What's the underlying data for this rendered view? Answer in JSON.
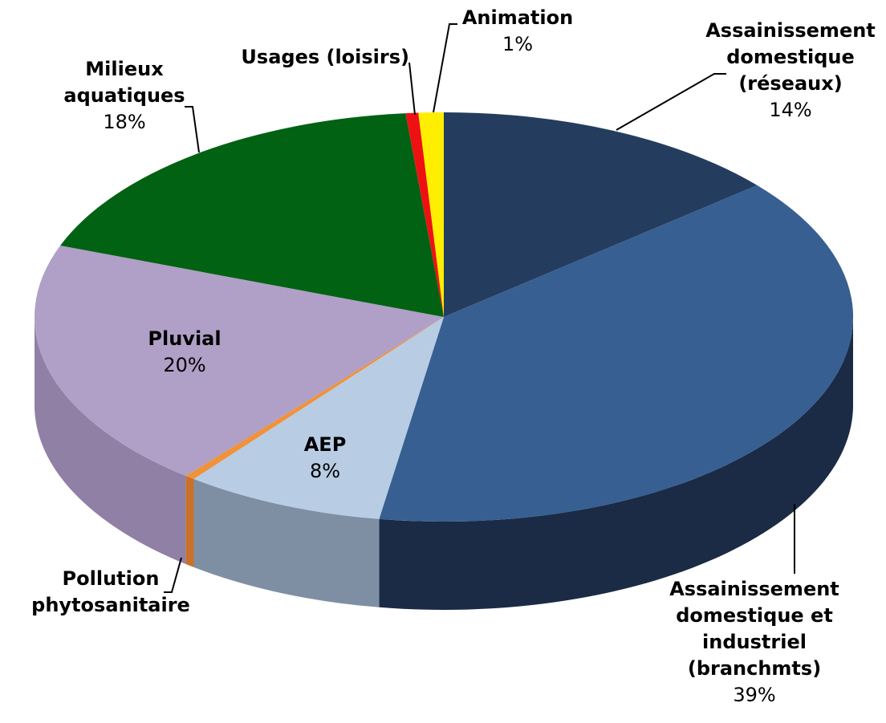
{
  "chart_data": {
    "type": "pie",
    "categories": [
      "Assainissement domestique (réseaux)",
      "Assainissement domestique et industriel (branchmts)",
      "AEP",
      "Pollution phytosanitaire",
      "Pluvial",
      "Milieux aquatiques",
      "Usages (loisirs)",
      "Animation"
    ],
    "values": [
      14,
      39,
      8,
      0.4,
      20,
      18,
      0.5,
      1
    ],
    "value_labels": [
      "14%",
      "39%",
      "8%",
      null,
      "20%",
      "18%",
      null,
      "1%"
    ],
    "colors": [
      "#243d5e",
      "#375f91",
      "#b8cce4",
      "#f0923a",
      "#b09fc6",
      "#006212",
      "#ee1111",
      "#ffee00"
    ],
    "side_colors": [
      "#1a2c45",
      "#1b2b45",
      "#7f8fa3",
      "#c9712a",
      "#9080a6",
      "#004a0d",
      "#a80b0b",
      "#c9bb00"
    ]
  }
}
